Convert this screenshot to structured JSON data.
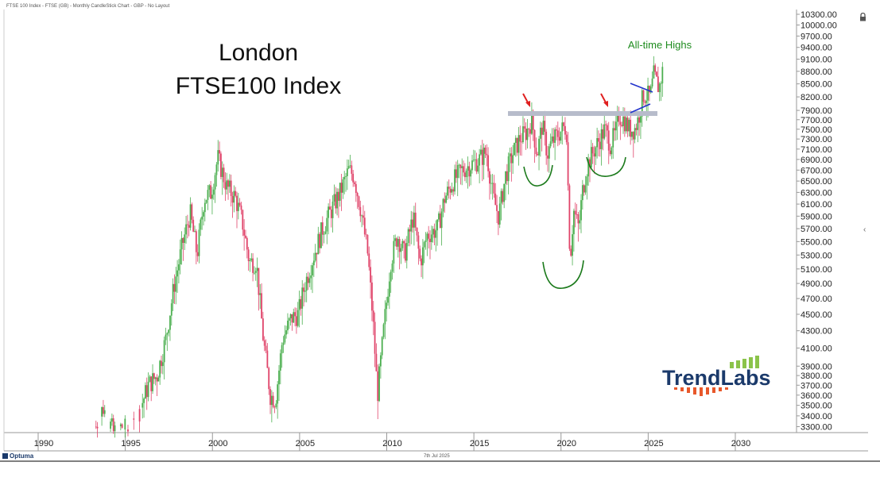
{
  "header": {
    "caption": "FTSE 100 Index - FTSE (GB) - Monthly CandleStick Chart - GBP - No Layout"
  },
  "footer": {
    "date": "7th Jul 2025",
    "brand": "Optuma"
  },
  "logo": {
    "text": "TrendLabs",
    "colors": {
      "text": "#1b3a6b",
      "bars_up": "#8bc34a",
      "bars_down": "#e8582a"
    }
  },
  "annotations": {
    "title_line1": "London",
    "title_line2": "FTSE100 Index",
    "ath_label": "All-time Highs"
  },
  "colors": {
    "up": "#4caf50",
    "down": "#e0446a",
    "resistance": "#b7bccb",
    "arc": "#1b7a1b",
    "arrow": "#e02020",
    "trend": "#2233cc"
  },
  "chart_data": {
    "type": "candlestick",
    "title": "",
    "xlabel": "",
    "ylabel": "",
    "scale": "log",
    "ylim": [
      3250,
      10400
    ],
    "xlim": [
      1987.5,
      2034
    ],
    "x_ticks": [
      1990,
      1995,
      2000,
      2005,
      2010,
      2015,
      2020,
      2025,
      2030
    ],
    "y_ticks": [
      "3300.00",
      "3400.00",
      "3500.00",
      "3600.00",
      "3700.00",
      "3800.00",
      "3900.00",
      "4100.00",
      "4300.00",
      "4500.00",
      "4700.00",
      "4900.00",
      "5100.00",
      "5300.00",
      "5500.00",
      "5700.00",
      "5900.00",
      "6100.00",
      "6300.00",
      "6500.00",
      "6700.00",
      "6900.00",
      "7100.00",
      "7300.00",
      "7500.00",
      "7700.00",
      "7900.00",
      "8200.00",
      "8500.00",
      "8800.00",
      "9100.00",
      "9400.00",
      "9700.00",
      "10000.00",
      "10300.00"
    ],
    "series": [
      {
        "values": [
          [
            1993.0,
            3300
          ],
          [
            1993.4,
            3480
          ],
          [
            1994.0,
            3250
          ],
          [
            1994.5,
            3300
          ],
          [
            1995.0,
            3250
          ],
          [
            1995.5,
            3450
          ],
          [
            1996.0,
            3700
          ],
          [
            1996.5,
            3800
          ],
          [
            1997.0,
            4200
          ],
          [
            1997.5,
            4900
          ],
          [
            1998.0,
            5500
          ],
          [
            1998.4,
            5950
          ],
          [
            1998.8,
            5300
          ],
          [
            1999.2,
            6200
          ],
          [
            1999.6,
            6300
          ],
          [
            1999.99,
            6930
          ],
          [
            2000.5,
            6400
          ],
          [
            2001.0,
            6200
          ],
          [
            2001.4,
            5800
          ],
          [
            2001.8,
            5200
          ],
          [
            2002.2,
            5200
          ],
          [
            2002.6,
            4200
          ],
          [
            2003.0,
            3600
          ],
          [
            2003.3,
            3550
          ],
          [
            2003.7,
            4200
          ],
          [
            2004.2,
            4450
          ],
          [
            2004.6,
            4500
          ],
          [
            2005.0,
            4900
          ],
          [
            2005.5,
            5300
          ],
          [
            2006.0,
            5700
          ],
          [
            2006.5,
            6000
          ],
          [
            2007.0,
            6300
          ],
          [
            2007.5,
            6700
          ],
          [
            2007.8,
            6600
          ],
          [
            2008.2,
            6000
          ],
          [
            2008.6,
            5300
          ],
          [
            2008.9,
            4400
          ],
          [
            2009.15,
            3600
          ],
          [
            2009.5,
            4300
          ],
          [
            2009.9,
            5200
          ],
          [
            2010.3,
            5600
          ],
          [
            2010.7,
            5300
          ],
          [
            2011.2,
            5900
          ],
          [
            2011.6,
            5200
          ],
          [
            2012.0,
            5600
          ],
          [
            2012.6,
            5700
          ],
          [
            2013.0,
            6200
          ],
          [
            2013.5,
            6500
          ],
          [
            2014.0,
            6700
          ],
          [
            2014.5,
            6800
          ],
          [
            2015.0,
            6900
          ],
          [
            2015.4,
            7050
          ],
          [
            2015.8,
            6200
          ],
          [
            2016.1,
            5900
          ],
          [
            2016.5,
            6600
          ],
          [
            2016.9,
            7000
          ],
          [
            2017.3,
            7300
          ],
          [
            2017.7,
            7450
          ],
          [
            2018.0,
            7700
          ],
          [
            2018.3,
            7000
          ],
          [
            2018.6,
            7600
          ],
          [
            2018.9,
            7000
          ],
          [
            2019.1,
            7200
          ],
          [
            2019.5,
            7400
          ],
          [
            2019.9,
            7550
          ],
          [
            2020.0,
            7450
          ],
          [
            2020.2,
            5200
          ],
          [
            2020.4,
            6000
          ],
          [
            2020.7,
            5700
          ],
          [
            2020.9,
            6300
          ],
          [
            2021.2,
            6800
          ],
          [
            2021.6,
            7100
          ],
          [
            2021.9,
            7300
          ],
          [
            2022.2,
            7500
          ],
          [
            2022.5,
            7200
          ],
          [
            2022.8,
            7400
          ],
          [
            2023.0,
            7800
          ],
          [
            2023.3,
            7700
          ],
          [
            2023.6,
            7500
          ],
          [
            2023.9,
            7500
          ],
          [
            2024.1,
            7700
          ],
          [
            2024.4,
            8250
          ],
          [
            2024.8,
            8200
          ],
          [
            2025.0,
            8700
          ],
          [
            2025.3,
            8400
          ],
          [
            2025.5,
            8800
          ]
        ]
      }
    ]
  }
}
